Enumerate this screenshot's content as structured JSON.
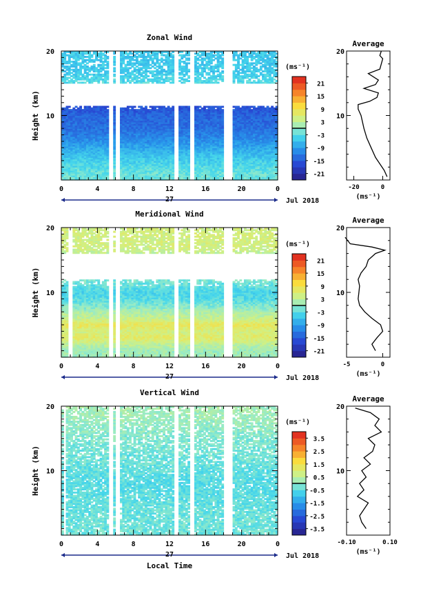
{
  "chart_data": [
    {
      "type": "heatmap",
      "title": "Zonal Wind",
      "ylabel": "Height (km)",
      "y_ticks": [
        "20",
        "10"
      ],
      "x_ticks": [
        "0",
        "4",
        "8",
        "12",
        "16",
        "20",
        "0"
      ],
      "ylim": [
        0,
        20
      ],
      "xlim": [
        0,
        24
      ],
      "day_label": "27",
      "date_label": "Jul 2018",
      "colorbar": {
        "unit": "(ms⁻¹)",
        "ticks": [
          "21",
          "15",
          "9",
          "3",
          "-3",
          "-9",
          "-15",
          "-21"
        ],
        "range": [
          -24,
          24
        ]
      },
      "field_profile": [
        {
          "h": 1,
          "v": -2
        },
        {
          "h": 2,
          "v": -3
        },
        {
          "h": 4,
          "v": -6
        },
        {
          "h": 6,
          "v": -10
        },
        {
          "h": 8,
          "v": -13
        },
        {
          "h": 10,
          "v": -14
        },
        {
          "h": 11.5,
          "v": -16
        },
        {
          "h": 12.5,
          "v": null
        },
        {
          "h": 15,
          "v": -3
        },
        {
          "h": 17,
          "v": -5
        }
      ],
      "gaps_x": [
        5.5,
        6.2,
        12.8,
        14.5,
        18.2,
        18.8
      ],
      "average": {
        "title": "Average",
        "xlabel": "(ms⁻¹)",
        "x_ticks": [
          "-20",
          "0"
        ],
        "y_ticks": [
          "20",
          "10"
        ],
        "xlim": [
          -25,
          5
        ],
        "profile": [
          {
            "h": 0.5,
            "v": 3
          },
          {
            "h": 1.5,
            "v": 1
          },
          {
            "h": 2.5,
            "v": -2
          },
          {
            "h": 3.5,
            "v": -5
          },
          {
            "h": 5,
            "v": -8
          },
          {
            "h": 6.5,
            "v": -11
          },
          {
            "h": 8,
            "v": -13
          },
          {
            "h": 9,
            "v": -14
          },
          {
            "h": 10,
            "v": -15
          },
          {
            "h": 11,
            "v": -17
          },
          {
            "h": 11.7,
            "v": -17
          },
          {
            "h": 12.2,
            "v": -9
          },
          {
            "h": 12.8,
            "v": -4
          },
          {
            "h": 13.5,
            "v": -3
          },
          {
            "h": 14.2,
            "v": -13
          },
          {
            "h": 14.8,
            "v": -5
          },
          {
            "h": 15.5,
            "v": -3
          },
          {
            "h": 16.5,
            "v": -10
          },
          {
            "h": 17.2,
            "v": -2
          },
          {
            "h": 18,
            "v": -1
          },
          {
            "h": 18.8,
            "v": 0
          },
          {
            "h": 19.3,
            "v": -2
          },
          {
            "h": 20,
            "v": -1
          }
        ]
      }
    },
    {
      "type": "heatmap",
      "title": "Meridional Wind",
      "ylabel": "Height (km)",
      "y_ticks": [
        "20",
        "10"
      ],
      "x_ticks": [
        "0",
        "4",
        "8",
        "12",
        "16",
        "20",
        "0"
      ],
      "ylim": [
        0,
        20
      ],
      "xlim": [
        0,
        24
      ],
      "day_label": "27",
      "date_label": "Jul 2018",
      "colorbar": {
        "unit": "(ms⁻¹)",
        "ticks": [
          "21",
          "15",
          "9",
          "3",
          "-3",
          "-9",
          "-15",
          "-21"
        ],
        "range": [
          -24,
          24
        ]
      },
      "field_profile": [
        {
          "h": 1,
          "v": 1
        },
        {
          "h": 2,
          "v": 3
        },
        {
          "h": 3,
          "v": 7
        },
        {
          "h": 4,
          "v": 5
        },
        {
          "h": 5,
          "v": 8
        },
        {
          "h": 6,
          "v": 4
        },
        {
          "h": 7,
          "v": 2
        },
        {
          "h": 8,
          "v": -1
        },
        {
          "h": 9,
          "v": -3
        },
        {
          "h": 10,
          "v": -4
        },
        {
          "h": 12,
          "v": -1
        },
        {
          "h": 14,
          "v": null
        },
        {
          "h": 16,
          "v": 3
        },
        {
          "h": 16.8,
          "v": 5
        }
      ],
      "gaps_x": [
        1.0,
        5.5,
        6.2,
        12.8,
        14.5,
        18.2,
        18.8
      ],
      "average": {
        "title": "Average",
        "xlabel": "(ms⁻¹)",
        "x_ticks": [
          "-5",
          "0"
        ],
        "y_ticks": [
          "20",
          "10"
        ],
        "xlim": [
          -5,
          1
        ],
        "profile": [
          {
            "h": 1,
            "v": -1
          },
          {
            "h": 2,
            "v": -1.5
          },
          {
            "h": 3,
            "v": -0.8
          },
          {
            "h": 4,
            "v": 0
          },
          {
            "h": 5,
            "v": -0.3
          },
          {
            "h": 6,
            "v": -1.5
          },
          {
            "h": 7,
            "v": -2.5
          },
          {
            "h": 8,
            "v": -3.2
          },
          {
            "h": 9,
            "v": -3.4
          },
          {
            "h": 10,
            "v": -3.3
          },
          {
            "h": 11,
            "v": -3.2
          },
          {
            "h": 12,
            "v": -3.4
          },
          {
            "h": 13,
            "v": -3.0
          },
          {
            "h": 14,
            "v": -2.3
          },
          {
            "h": 15,
            "v": -2.0
          },
          {
            "h": 16,
            "v": -1.0
          },
          {
            "h": 16.5,
            "v": 0.3
          },
          {
            "h": 17,
            "v": -1.5
          },
          {
            "h": 17.5,
            "v": -4.5
          },
          {
            "h": 18.5,
            "v": -5.2
          }
        ]
      }
    },
    {
      "type": "heatmap",
      "title": "Vertical Wind",
      "ylabel": "Height (km)",
      "y_ticks": [
        "20",
        "10"
      ],
      "x_ticks": [
        "0",
        "4",
        "8",
        "12",
        "16",
        "20",
        "0"
      ],
      "ylim": [
        0,
        20
      ],
      "xlim": [
        0,
        24
      ],
      "day_label": "27",
      "date_label": "Jul 2018",
      "xlabel": "Local Time",
      "colorbar": {
        "unit": "(ms⁻¹)",
        "ticks": [
          "3.5",
          "2.5",
          "1.5",
          "0.5",
          "-0.5",
          "-1.5",
          "-2.5",
          "-3.5"
        ],
        "range": [
          -4,
          4
        ]
      },
      "field_profile": [
        {
          "h": 2,
          "v": -0.3
        },
        {
          "h": 8,
          "v": -0.5
        },
        {
          "h": 14,
          "v": -0.2
        },
        {
          "h": 19,
          "v": 0.2
        }
      ],
      "gaps_x": [
        0.4,
        5.5,
        6.2,
        12.8,
        14.5,
        18.2,
        18.8
      ],
      "average": {
        "title": "Average",
        "xlabel": "(ms⁻¹)",
        "x_ticks": [
          "-0.10",
          "0.10"
        ],
        "y_ticks": [
          "20",
          "10"
        ],
        "xlim": [
          -0.1,
          0.1
        ],
        "profile": [
          {
            "h": 1,
            "v": -0.01
          },
          {
            "h": 2,
            "v": -0.03
          },
          {
            "h": 3,
            "v": -0.04
          },
          {
            "h": 4,
            "v": -0.02
          },
          {
            "h": 5,
            "v": 0.0
          },
          {
            "h": 6,
            "v": -0.05
          },
          {
            "h": 7,
            "v": -0.02
          },
          {
            "h": 8,
            "v": -0.04
          },
          {
            "h": 9,
            "v": -0.01
          },
          {
            "h": 10,
            "v": -0.03
          },
          {
            "h": 11,
            "v": 0.01
          },
          {
            "h": 12,
            "v": -0.02
          },
          {
            "h": 13,
            "v": 0.02
          },
          {
            "h": 14,
            "v": 0.03
          },
          {
            "h": 15,
            "v": 0.0
          },
          {
            "h": 16,
            "v": 0.06
          },
          {
            "h": 17,
            "v": 0.03
          },
          {
            "h": 18,
            "v": 0.05
          },
          {
            "h": 19,
            "v": 0.01
          },
          {
            "h": 19.7,
            "v": -0.06
          }
        ]
      }
    }
  ]
}
